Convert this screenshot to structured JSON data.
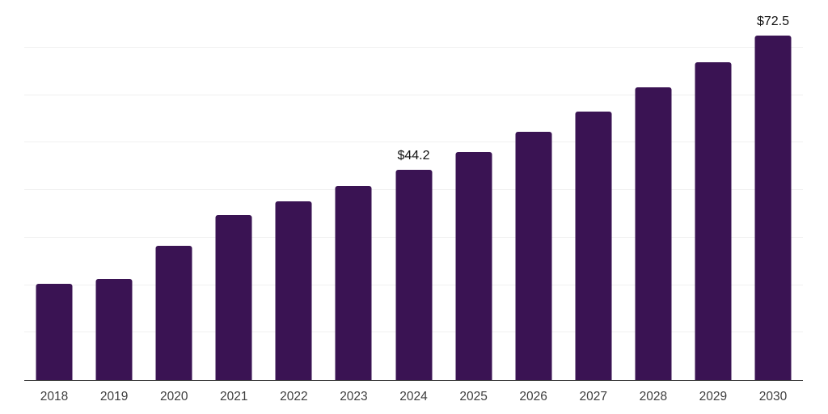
{
  "chart_data": {
    "type": "bar",
    "title": "",
    "xlabel": "",
    "ylabel": "",
    "categories": [
      "2018",
      "2019",
      "2020",
      "2021",
      "2022",
      "2023",
      "2024",
      "2025",
      "2026",
      "2027",
      "2028",
      "2029",
      "2030"
    ],
    "values": [
      20.2,
      21.3,
      28.2,
      34.7,
      37.7,
      40.8,
      44.2,
      48.0,
      52.2,
      56.5,
      61.7,
      66.9,
      72.5
    ],
    "data_labels": [
      {
        "category": "2024",
        "text": "$44.2"
      },
      {
        "category": "2030",
        "text": "$72.5"
      }
    ],
    "ylim": [
      0,
      80
    ],
    "grid_step": 10,
    "grid": true,
    "legend": false,
    "y_tick_labels_visible": false,
    "colors": {
      "bar": "#3a1353",
      "axis_line": "#333333",
      "gridline": "#f0f0f0",
      "tick_label": "#3d3d3d",
      "data_label": "#111111",
      "background": "#ffffff"
    }
  }
}
